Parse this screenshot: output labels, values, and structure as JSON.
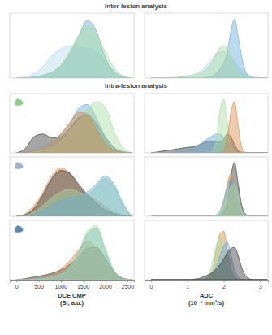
{
  "sections": [
    {
      "title": "Inter-lesion analysis"
    },
    {
      "title": "Intra-lesion analysis"
    }
  ],
  "chart_data": [
    {
      "type": "area",
      "tick_labels": false,
      "xlim": [
        -150,
        2650
      ],
      "ylim": [
        0,
        1.1
      ],
      "x": [
        0,
        200,
        400,
        600,
        800,
        1000,
        1200,
        1400,
        1600,
        1800,
        2000,
        2200,
        2400,
        2600
      ],
      "series": [
        {
          "color": "#b9d7ee",
          "values": [
            0,
            0.02,
            0.08,
            0.2,
            0.38,
            0.5,
            0.55,
            0.52,
            0.5,
            0.45,
            0.3,
            0.12,
            0.03,
            0
          ]
        },
        {
          "color": "#6baed6",
          "values": [
            0,
            0,
            0.02,
            0.05,
            0.1,
            0.2,
            0.4,
            0.7,
            0.98,
            0.8,
            0.35,
            0.1,
            0.02,
            0
          ]
        },
        {
          "color": "#a6dba0",
          "values": [
            0,
            0,
            0.01,
            0.04,
            0.1,
            0.22,
            0.45,
            0.72,
            0.88,
            0.75,
            0.45,
            0.18,
            0.04,
            0
          ]
        }
      ]
    },
    {
      "type": "area",
      "tick_labels": false,
      "xlim": [
        -0.18,
        3.22
      ],
      "ylim": [
        0,
        1.1
      ],
      "x": [
        0,
        0.1,
        0.2,
        0.3,
        0.4,
        0.5,
        0.6,
        0.7,
        0.8,
        0.9,
        1,
        1.1,
        1.2,
        1.3,
        1.4,
        1.5,
        1.6,
        1.7,
        1.8,
        1.9,
        2,
        2.1,
        2.2,
        2.3,
        2.4,
        2.5,
        2.6,
        2.7,
        2.8,
        2.9,
        3,
        3.1,
        3.2
      ],
      "series": [
        {
          "color": "#b9d7ee",
          "values": [
            0,
            0,
            0,
            0,
            0,
            0,
            0,
            0.01,
            0.02,
            0.03,
            0.04,
            0.05,
            0.07,
            0.1,
            0.14,
            0.2,
            0.27,
            0.34,
            0.4,
            0.44,
            0.45,
            0.42,
            0.36,
            0.28,
            0.2,
            0.13,
            0.07,
            0.04,
            0.02,
            0.01,
            0,
            0,
            0
          ]
        },
        {
          "color": "#6baed6",
          "values": [
            0,
            0,
            0,
            0,
            0,
            0,
            0,
            0,
            0,
            0,
            0,
            0,
            0,
            0,
            0,
            0.01,
            0.02,
            0.04,
            0.08,
            0.15,
            0.25,
            0.45,
            0.8,
            1.0,
            0.7,
            0.35,
            0.12,
            0.04,
            0.01,
            0,
            0,
            0,
            0
          ]
        },
        {
          "color": "#a6dba0",
          "values": [
            0,
            0,
            0,
            0,
            0,
            0,
            0.01,
            0.01,
            0.02,
            0.02,
            0.03,
            0.04,
            0.05,
            0.07,
            0.1,
            0.14,
            0.2,
            0.3,
            0.42,
            0.52,
            0.55,
            0.5,
            0.38,
            0.25,
            0.14,
            0.07,
            0.03,
            0.01,
            0,
            0,
            0,
            0,
            0
          ]
        }
      ]
    },
    {
      "type": "area",
      "tick_labels": false,
      "xlim": [
        -150,
        2650
      ],
      "ylim": [
        0,
        1.1
      ],
      "x": [
        0,
        200,
        400,
        600,
        800,
        1000,
        1200,
        1400,
        1600,
        1800,
        2000,
        2200,
        2400,
        2600
      ],
      "series": [
        {
          "color": "#3a3a3a",
          "values": [
            0,
            0.08,
            0.3,
            0.35,
            0.28,
            0.3,
            0.45,
            0.65,
            0.7,
            0.55,
            0.3,
            0.1,
            0.02,
            0
          ]
        },
        {
          "color": "#6baed6",
          "values": [
            0,
            0.01,
            0.05,
            0.12,
            0.2,
            0.35,
            0.55,
            0.82,
            0.9,
            0.65,
            0.3,
            0.1,
            0.02,
            0
          ]
        },
        {
          "color": "#a6dba0",
          "values": [
            0,
            0,
            0.02,
            0.05,
            0.1,
            0.2,
            0.4,
            0.6,
            0.8,
            0.95,
            0.85,
            0.4,
            0.1,
            0
          ]
        },
        {
          "color": "#d98c4a",
          "values": [
            0,
            0.01,
            0.04,
            0.1,
            0.2,
            0.35,
            0.55,
            0.75,
            0.72,
            0.45,
            0.18,
            0.05,
            0.01,
            0
          ]
        }
      ]
    },
    {
      "type": "area",
      "tick_labels": false,
      "xlim": [
        -0.18,
        3.22
      ],
      "ylim": [
        0,
        1.1
      ],
      "x": [
        0,
        0.1,
        0.2,
        0.3,
        0.4,
        0.5,
        0.6,
        0.7,
        0.8,
        0.9,
        1,
        1.1,
        1.2,
        1.3,
        1.4,
        1.5,
        1.6,
        1.7,
        1.8,
        1.9,
        2,
        2.1,
        2.2,
        2.3,
        2.4,
        2.5,
        2.6,
        2.7,
        2.8,
        2.9,
        3,
        3.1,
        3.2
      ],
      "series": [
        {
          "color": "#3a3a3a",
          "values": [
            0,
            0.01,
            0.02,
            0.03,
            0.04,
            0.05,
            0.06,
            0.07,
            0.08,
            0.09,
            0.1,
            0.11,
            0.12,
            0.14,
            0.17,
            0.2,
            0.22,
            0.22,
            0.2,
            0.2,
            0.25,
            0.35,
            0.3,
            0.15,
            0.05,
            0.01,
            0,
            0,
            0,
            0,
            0,
            0,
            0
          ]
        },
        {
          "color": "#6baed6",
          "values": [
            0,
            0,
            0,
            0,
            0,
            0,
            0.01,
            0.02,
            0.03,
            0.04,
            0.06,
            0.08,
            0.1,
            0.14,
            0.18,
            0.23,
            0.28,
            0.32,
            0.35,
            0.34,
            0.3,
            0.22,
            0.12,
            0.05,
            0.02,
            0,
            0,
            0,
            0,
            0,
            0,
            0,
            0
          ]
        },
        {
          "color": "#a6dba0",
          "values": [
            0,
            0,
            0,
            0,
            0,
            0,
            0,
            0,
            0,
            0,
            0,
            0,
            0,
            0,
            0,
            0,
            0.01,
            0.05,
            0.25,
            0.8,
            1.0,
            0.6,
            0.15,
            0.03,
            0,
            0,
            0,
            0,
            0,
            0,
            0,
            0,
            0
          ]
        },
        {
          "color": "#d98c4a",
          "values": [
            0,
            0,
            0,
            0,
            0,
            0,
            0,
            0,
            0,
            0,
            0,
            0,
            0,
            0,
            0,
            0,
            0,
            0,
            0,
            0.01,
            0.05,
            0.3,
            0.75,
            0.95,
            0.5,
            0.1,
            0.01,
            0,
            0,
            0,
            0,
            0,
            0
          ]
        }
      ]
    },
    {
      "type": "area",
      "tick_labels": false,
      "xlim": [
        -150,
        2650
      ],
      "ylim": [
        0,
        1.1
      ],
      "x": [
        0,
        200,
        400,
        600,
        800,
        1000,
        1200,
        1400,
        1600,
        1800,
        2000,
        2200,
        2400,
        2600
      ],
      "series": [
        {
          "color": "#d98c4a",
          "values": [
            0,
            0.05,
            0.2,
            0.45,
            0.75,
            0.9,
            0.8,
            0.55,
            0.4,
            0.3,
            0.18,
            0.08,
            0.02,
            0
          ]
        },
        {
          "color": "#3a3a3a",
          "values": [
            0,
            0.03,
            0.15,
            0.4,
            0.7,
            0.85,
            0.8,
            0.6,
            0.4,
            0.25,
            0.12,
            0.05,
            0.01,
            0
          ]
        },
        {
          "color": "#a6dba0",
          "values": [
            0,
            0.02,
            0.08,
            0.2,
            0.35,
            0.45,
            0.5,
            0.45,
            0.4,
            0.55,
            0.7,
            0.55,
            0.2,
            0
          ]
        },
        {
          "color": "#6baed6",
          "values": [
            0,
            0.01,
            0.05,
            0.12,
            0.22,
            0.3,
            0.35,
            0.38,
            0.45,
            0.6,
            0.75,
            0.6,
            0.25,
            0
          ]
        }
      ]
    },
    {
      "type": "area",
      "tick_labels": false,
      "xlim": [
        -0.18,
        3.22
      ],
      "ylim": [
        0,
        1.1
      ],
      "x": [
        0,
        0.1,
        0.2,
        0.3,
        0.4,
        0.5,
        0.6,
        0.7,
        0.8,
        0.9,
        1,
        1.1,
        1.2,
        1.3,
        1.4,
        1.5,
        1.6,
        1.7,
        1.8,
        1.9,
        2,
        2.1,
        2.2,
        2.3,
        2.4,
        2.5,
        2.6,
        2.7,
        2.8,
        2.9,
        3,
        3.1,
        3.2
      ],
      "series": [
        {
          "color": "#3a3a3a",
          "values": [
            0,
            0,
            0,
            0,
            0,
            0,
            0,
            0,
            0,
            0,
            0,
            0,
            0,
            0,
            0,
            0,
            0,
            0,
            0,
            0.02,
            0.08,
            0.3,
            0.75,
            1.0,
            0.6,
            0.2,
            0.04,
            0.01,
            0,
            0,
            0,
            0,
            0
          ]
        },
        {
          "color": "#d98c4a",
          "values": [
            0,
            0,
            0,
            0,
            0,
            0,
            0,
            0,
            0,
            0,
            0,
            0,
            0,
            0,
            0,
            0,
            0,
            0,
            0.01,
            0.05,
            0.25,
            0.6,
            0.8,
            0.5,
            0.15,
            0.03,
            0,
            0,
            0,
            0,
            0,
            0,
            0
          ]
        },
        {
          "color": "#6baed6",
          "values": [
            0,
            0,
            0,
            0,
            0,
            0,
            0,
            0,
            0,
            0,
            0,
            0,
            0,
            0,
            0,
            0,
            0,
            0.01,
            0.03,
            0.1,
            0.3,
            0.55,
            0.7,
            0.5,
            0.2,
            0.05,
            0.01,
            0,
            0,
            0,
            0,
            0,
            0
          ]
        },
        {
          "color": "#a6dba0",
          "values": [
            0,
            0,
            0,
            0,
            0,
            0,
            0,
            0,
            0,
            0,
            0,
            0,
            0,
            0,
            0,
            0,
            0,
            0,
            0.02,
            0.06,
            0.2,
            0.4,
            0.55,
            0.6,
            0.35,
            0.1,
            0.02,
            0,
            0,
            0,
            0,
            0,
            0
          ]
        }
      ]
    },
    {
      "type": "area",
      "tick_labels": "x",
      "xlim": [
        -150,
        2650
      ],
      "ylim": [
        0,
        1.1
      ],
      "xticks": [
        0,
        500,
        1000,
        1500,
        2000,
        2500
      ],
      "x_label": [
        "DCE CMP",
        "(SI, a.u.)"
      ],
      "x": [
        0,
        200,
        400,
        600,
        800,
        1000,
        1200,
        1400,
        1600,
        1800,
        2000,
        2200,
        2400,
        2600
      ],
      "series": [
        {
          "color": "#3a3a3a",
          "values": [
            0,
            0.02,
            0.05,
            0.08,
            0.12,
            0.18,
            0.28,
            0.42,
            0.58,
            0.6,
            0.4,
            0.15,
            0.03,
            0
          ]
        },
        {
          "color": "#d98c4a",
          "values": [
            0,
            0,
            0.02,
            0.05,
            0.1,
            0.2,
            0.35,
            0.55,
            0.7,
            0.6,
            0.35,
            0.12,
            0.02,
            0
          ]
        },
        {
          "color": "#6baed6",
          "values": [
            0,
            0,
            0.01,
            0.03,
            0.06,
            0.12,
            0.25,
            0.5,
            0.85,
            0.95,
            0.55,
            0.15,
            0.02,
            0
          ]
        },
        {
          "color": "#a6dba0",
          "values": [
            0,
            0,
            0.01,
            0.02,
            0.05,
            0.1,
            0.22,
            0.5,
            0.9,
            1.0,
            0.6,
            0.18,
            0.03,
            0
          ]
        }
      ]
    },
    {
      "type": "area",
      "tick_labels": "x",
      "xlim": [
        -0.18,
        3.22
      ],
      "ylim": [
        0,
        1.1
      ],
      "xticks": [
        0,
        1,
        2,
        3
      ],
      "x_label": [
        "ADC",
        "(10⁻³ mm²/s)"
      ],
      "x": [
        0,
        0.1,
        0.2,
        0.3,
        0.4,
        0.5,
        0.6,
        0.7,
        0.8,
        0.9,
        1,
        1.1,
        1.2,
        1.3,
        1.4,
        1.5,
        1.6,
        1.7,
        1.8,
        1.9,
        2,
        2.1,
        2.2,
        2.3,
        2.4,
        2.5,
        2.6,
        2.7,
        2.8,
        2.9,
        3,
        3.1,
        3.2
      ],
      "series": [
        {
          "color": "#d98c4a",
          "values": [
            0,
            0,
            0,
            0,
            0,
            0,
            0,
            0,
            0,
            0,
            0,
            0,
            0,
            0,
            0,
            0.01,
            0.05,
            0.2,
            0.55,
            0.85,
            0.9,
            0.55,
            0.2,
            0.05,
            0.01,
            0,
            0,
            0,
            0,
            0,
            0,
            0,
            0
          ]
        },
        {
          "color": "#a6dba0",
          "values": [
            0,
            0,
            0,
            0,
            0,
            0,
            0,
            0,
            0,
            0,
            0,
            0,
            0,
            0,
            0.01,
            0.04,
            0.12,
            0.35,
            0.65,
            0.8,
            0.6,
            0.3,
            0.1,
            0.02,
            0,
            0,
            0,
            0,
            0,
            0,
            0,
            0,
            0
          ]
        },
        {
          "color": "#6baed6",
          "values": [
            0,
            0,
            0,
            0,
            0,
            0,
            0,
            0,
            0,
            0,
            0,
            0,
            0,
            0,
            0,
            0.02,
            0.05,
            0.12,
            0.25,
            0.45,
            0.62,
            0.7,
            0.45,
            0.18,
            0.05,
            0.01,
            0,
            0,
            0,
            0,
            0,
            0,
            0
          ]
        },
        {
          "color": "#3a3a3a",
          "values": [
            0,
            0,
            0,
            0,
            0,
            0,
            0,
            0,
            0,
            0,
            0,
            0,
            0.01,
            0.02,
            0.04,
            0.07,
            0.1,
            0.14,
            0.2,
            0.28,
            0.38,
            0.5,
            0.58,
            0.6,
            0.45,
            0.22,
            0.08,
            0.02,
            0,
            0,
            0,
            0,
            0
          ]
        }
      ]
    }
  ]
}
